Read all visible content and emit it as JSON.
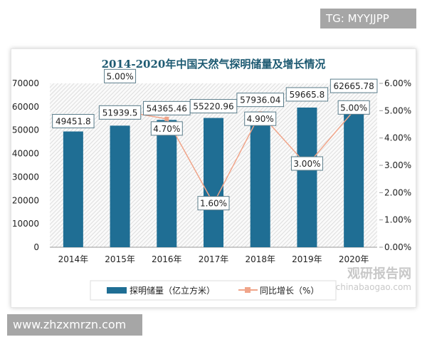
{
  "watermark_top": "TG: MYYJJPP",
  "watermark_bottom": "www.zhzxmrzn.com",
  "logo_text": "观研报告网 chinabaogao.com",
  "colors": {
    "bar": "#1f6e94",
    "line": "#f0a58a",
    "title": "#1d5a72",
    "hatch": "#d5d5d5"
  },
  "chart_data": {
    "type": "bar+line",
    "title": "2014-2020年中国天然气探明储量及增长情况",
    "categories": [
      "2014年",
      "2015年",
      "2016年",
      "2017年",
      "2018年",
      "2019年",
      "2020年"
    ],
    "series": [
      {
        "name": "探明储量（亿立方米）",
        "type": "bar",
        "axis": "left",
        "values": [
          49451.8,
          51939.5,
          54365.46,
          55220.96,
          57936.04,
          59665.8,
          62665.78
        ],
        "labels": [
          "49451.8",
          "51939.5",
          "54365.46",
          "55220.96",
          "57936.04",
          "59665.8",
          "62665.78"
        ]
      },
      {
        "name": "同比增长（%）",
        "type": "line",
        "axis": "right",
        "values": [
          null,
          5.0,
          4.7,
          1.6,
          4.9,
          3.0,
          5.0
        ],
        "labels": [
          "",
          "5.00%",
          "4.70%",
          "1.60%",
          "4.90%",
          "3.00%",
          "5.00%"
        ]
      }
    ],
    "yleft": {
      "lim": [
        0,
        70000
      ],
      "ticks": [
        "0",
        "10000",
        "20000",
        "30000",
        "40000",
        "50000",
        "60000",
        "70000"
      ]
    },
    "yright": {
      "lim": [
        0,
        6
      ],
      "ticks": [
        "0.00%",
        "1.00%",
        "2.00%",
        "3.00%",
        "4.00%",
        "5.00%",
        "6.00%"
      ]
    },
    "legend": "bottom",
    "grid": false
  }
}
